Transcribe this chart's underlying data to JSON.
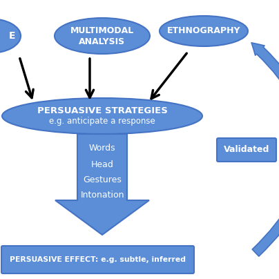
{
  "bg_color": "#ffffff",
  "blue": "#5b8ed6",
  "blue_edge": "#4472C4",
  "blue_dark": "#3a6abf",
  "ellipse1_label": "MULTIMODAL\nANALYSIS",
  "ellipse2_label": "ETHNOGRAPHY",
  "ellipse_left_label": "E",
  "persuasive_line1": "PERSUASIVE STRATEGIES",
  "persuasive_line2": "e.g. anticipate a response",
  "items": [
    "Words",
    "Head",
    "Gestures",
    "Intonation"
  ],
  "effect_label": "PERSUASIVE EFFECT: e.g. subtle, inferred",
  "validated_label": "Validated"
}
